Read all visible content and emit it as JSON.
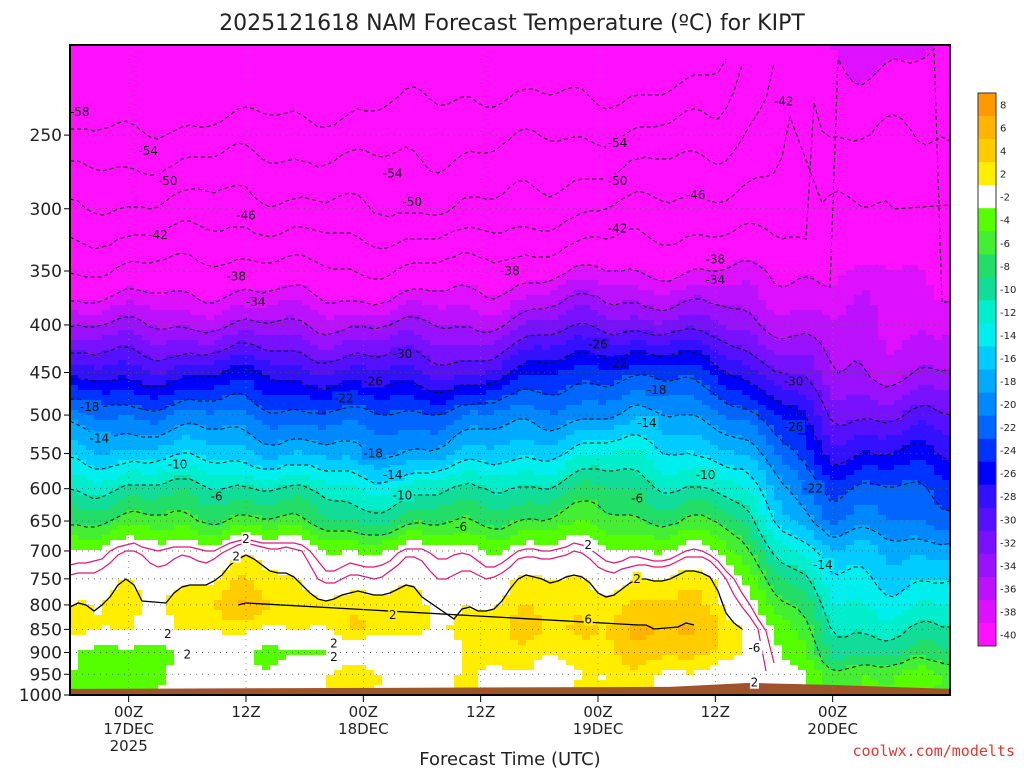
{
  "title": "2025121618 NAM Forecast Temperature (ºC) for KIPT",
  "credit": "coolwx.com/modelts",
  "chart_data": {
    "type": "heatmap",
    "title": "2025121618 NAM Forecast Temperature (ºC) for KIPT",
    "xlabel": "Forecast Time (UTC)",
    "ylabel": "",
    "y_scale": "log-pressure (hPa), inverted",
    "ylim": [
      1000,
      200
    ],
    "xlim": [
      "2025-12-16 18Z",
      "2025-12-20 12Z"
    ],
    "y_ticks": [
      250,
      300,
      350,
      400,
      450,
      500,
      550,
      600,
      650,
      700,
      750,
      800,
      850,
      900,
      950,
      1000
    ],
    "x_ticks": [
      {
        "lines": [
          "00Z",
          "17DEC",
          "2025"
        ],
        "time": "2025-12-17 00Z"
      },
      {
        "lines": [
          "12Z"
        ],
        "time": "2025-12-17 12Z"
      },
      {
        "lines": [
          "00Z",
          "18DEC"
        ],
        "time": "2025-12-18 00Z"
      },
      {
        "lines": [
          "12Z"
        ],
        "time": "2025-12-18 12Z"
      },
      {
        "lines": [
          "00Z",
          "19DEC"
        ],
        "time": "2025-12-19 00Z"
      },
      {
        "lines": [
          "12Z"
        ],
        "time": "2025-12-19 12Z"
      },
      {
        "lines": [
          "00Z",
          "20DEC"
        ],
        "time": "2025-12-20 00Z"
      }
    ],
    "grid": true,
    "colorbar": {
      "position": "right",
      "labels": [
        "8",
        "6",
        "4",
        "2",
        "-2",
        "-4",
        "-6",
        "-8",
        "-10",
        "-12",
        "-14",
        "-16",
        "-18",
        "-20",
        "-22",
        "-24",
        "-26",
        "-28",
        "-30",
        "-32",
        "-34",
        "-36",
        "-38",
        "-40"
      ],
      "colors": [
        "#ff9900",
        "#ffb400",
        "#ffcc00",
        "#ffee00",
        "#ffffff",
        "#55ff00",
        "#44ee33",
        "#22dd66",
        "#11dd99",
        "#00eecc",
        "#00eeee",
        "#00ccff",
        "#00aaff",
        "#0088ff",
        "#0066ff",
        "#0033ff",
        "#0000ff",
        "#3311ff",
        "#5511ff",
        "#7711ff",
        "#9911ff",
        "#bb11ff",
        "#dd11ff",
        "#ff11ff"
      ]
    },
    "terrain_color": "#a0522d",
    "temperature_field_profiles": [
      {
        "time": "2025-12-16 18Z",
        "levels_hPa": [
          250,
          300,
          350,
          400,
          450,
          500,
          550,
          600,
          650,
          700,
          750,
          800,
          850,
          900,
          950
        ],
        "temp_C": [
          -58,
          -50,
          -42,
          -34,
          -28,
          -20,
          -15,
          -10,
          -6,
          -2,
          0,
          1,
          2,
          -3,
          -3
        ]
      },
      {
        "time": "2025-12-17 12Z",
        "levels_hPa": [
          250,
          300,
          350,
          400,
          450,
          500,
          550,
          600,
          650,
          700,
          750,
          800,
          850,
          900,
          950
        ],
        "temp_C": [
          -56,
          -48,
          -40,
          -34,
          -26,
          -20,
          -15,
          -9,
          -5,
          1,
          3,
          5,
          2,
          -2,
          -1
        ]
      },
      {
        "time": "2025-12-18 00Z",
        "levels_hPa": [
          250,
          300,
          350,
          400,
          450,
          500,
          550,
          600,
          650,
          700,
          750,
          800,
          850,
          900,
          950
        ],
        "temp_C": [
          -56,
          -50,
          -42,
          -34,
          -28,
          -22,
          -18,
          -12,
          -8,
          -2,
          0,
          3,
          3,
          -2,
          3
        ]
      },
      {
        "time": "2025-12-18 12Z",
        "levels_hPa": [
          250,
          300,
          350,
          400,
          450,
          500,
          550,
          600,
          650,
          700,
          750,
          800,
          850,
          900,
          950
        ],
        "temp_C": [
          -55,
          -50,
          -40,
          -34,
          -28,
          -20,
          -16,
          -10,
          -6,
          -1,
          1,
          2,
          3,
          2,
          1
        ]
      },
      {
        "time": "2025-12-19 00Z",
        "levels_hPa": [
          250,
          300,
          350,
          400,
          450,
          500,
          550,
          600,
          650,
          700,
          750,
          800,
          850,
          900,
          950
        ],
        "temp_C": [
          -54,
          -46,
          -38,
          -30,
          -22,
          -18,
          -12,
          -8,
          -5,
          -1,
          2,
          4,
          5,
          4,
          2
        ]
      },
      {
        "time": "2025-12-19 12Z",
        "levels_hPa": [
          250,
          300,
          350,
          400,
          450,
          500,
          550,
          600,
          650,
          700,
          750,
          800,
          850,
          900,
          950
        ],
        "temp_C": [
          -52,
          -44,
          -38,
          -32,
          -24,
          -18,
          -14,
          -10,
          -6,
          -2,
          2,
          4,
          6,
          5,
          2
        ]
      },
      {
        "time": "2025-12-20 00Z",
        "levels_hPa": [
          250,
          300,
          350,
          400,
          450,
          500,
          550,
          600,
          650,
          700,
          750,
          800,
          850,
          900,
          950
        ],
        "temp_C": [
          -42,
          -46,
          -38,
          -36,
          -34,
          -30,
          -26,
          -22,
          -20,
          -16,
          -14,
          -12,
          -10,
          -8,
          -4
        ]
      }
    ],
    "contour_labels": [
      {
        "text": "-58",
        "time": "2025-12-16 19Z",
        "p": 236
      },
      {
        "text": "-54",
        "time": "2025-12-17 02Z",
        "p": 260
      },
      {
        "text": "-50",
        "time": "2025-12-17 04Z",
        "p": 280
      },
      {
        "text": "-42",
        "time": "2025-12-17 03Z",
        "p": 320
      },
      {
        "text": "-46",
        "time": "2025-12-17 12Z",
        "p": 305
      },
      {
        "text": "-38",
        "time": "2025-12-17 11Z",
        "p": 355
      },
      {
        "text": "-34",
        "time": "2025-12-17 13Z",
        "p": 378
      },
      {
        "text": "-54",
        "time": "2025-12-18 03Z",
        "p": 275
      },
      {
        "text": "-50",
        "time": "2025-12-18 05Z",
        "p": 295
      },
      {
        "text": "-30",
        "time": "2025-12-18 04Z",
        "p": 430
      },
      {
        "text": "-26",
        "time": "2025-12-18 01Z",
        "p": 460
      },
      {
        "text": "-22",
        "time": "2025-12-17 22Z",
        "p": 480
      },
      {
        "text": "-18",
        "time": "2025-12-16 20Z",
        "p": 490
      },
      {
        "text": "-14",
        "time": "2025-12-16 21Z",
        "p": 530
      },
      {
        "text": "-10",
        "time": "2025-12-17 05Z",
        "p": 565
      },
      {
        "text": "-6",
        "time": "2025-12-17 09Z",
        "p": 612
      },
      {
        "text": "2",
        "time": "2025-12-17 12Z",
        "p": 680
      },
      {
        "text": "2",
        "time": "2025-12-17 11Z",
        "p": 710
      },
      {
        "text": "-18",
        "time": "2025-12-18 01Z",
        "p": 550
      },
      {
        "text": "-14",
        "time": "2025-12-18 03Z",
        "p": 580
      },
      {
        "text": "-10",
        "time": "2025-12-18 04Z",
        "p": 610
      },
      {
        "text": "-6",
        "time": "2025-12-18 10Z",
        "p": 660
      },
      {
        "text": "2",
        "time": "2025-12-18 03Z",
        "p": 820
      },
      {
        "text": "2",
        "time": "2025-12-17 21Z",
        "p": 880
      },
      {
        "text": "2",
        "time": "2025-12-17 04Z",
        "p": 860
      },
      {
        "text": "2",
        "time": "2025-12-17 06Z",
        "p": 905
      },
      {
        "text": "2",
        "time": "2025-12-17 21Z",
        "p": 910
      },
      {
        "text": "-38",
        "time": "2025-12-18 15Z",
        "p": 350
      },
      {
        "text": "-26",
        "time": "2025-12-19 00Z",
        "p": 420
      },
      {
        "text": "-22",
        "time": "2025-12-19 02Z",
        "p": 440
      },
      {
        "text": "-18",
        "time": "2025-12-19 06Z",
        "p": 470
      },
      {
        "text": "-14",
        "time": "2025-12-19 05Z",
        "p": 510
      },
      {
        "text": "-54",
        "time": "2025-12-19 02Z",
        "p": 255
      },
      {
        "text": "-50",
        "time": "2025-12-19 02Z",
        "p": 280
      },
      {
        "text": "-42",
        "time": "2025-12-19 02Z",
        "p": 315
      },
      {
        "text": "-46",
        "time": "2025-12-19 10Z",
        "p": 290
      },
      {
        "text": "-38",
        "time": "2025-12-19 12Z",
        "p": 340
      },
      {
        "text": "-34",
        "time": "2025-12-19 12Z",
        "p": 358
      },
      {
        "text": "-10",
        "time": "2025-12-19 11Z",
        "p": 580
      },
      {
        "text": "-6",
        "time": "2025-12-19 04Z",
        "p": 615
      },
      {
        "text": "2",
        "time": "2025-12-18 23Z",
        "p": 690
      },
      {
        "text": "2",
        "time": "2025-12-19 04Z",
        "p": 750
      },
      {
        "text": "6",
        "time": "2025-12-18 23Z",
        "p": 830
      },
      {
        "text": "-30",
        "time": "2025-12-19 20Z",
        "p": 460
      },
      {
        "text": "-26",
        "time": "2025-12-19 20Z",
        "p": 515
      },
      {
        "text": "-22",
        "time": "2025-12-19 22Z",
        "p": 600
      },
      {
        "text": "-14",
        "time": "2025-12-19 23Z",
        "p": 725
      },
      {
        "text": "-6",
        "time": "2025-12-19 16Z",
        "p": 890
      },
      {
        "text": "2",
        "time": "2025-12-19 16Z",
        "p": 970
      },
      {
        "text": "-42",
        "time": "2025-12-19 19Z",
        "p": 230
      }
    ]
  }
}
